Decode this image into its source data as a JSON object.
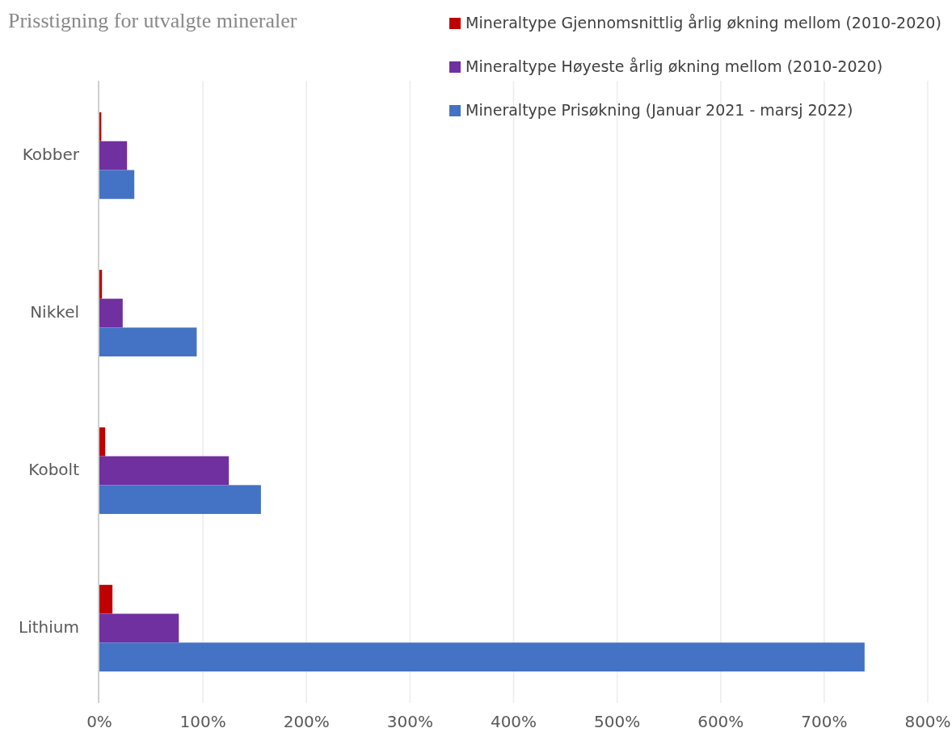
{
  "chart_data": {
    "type": "bar",
    "orientation": "horizontal",
    "title": "Prisstigning for utvalgte mineraler",
    "categories": [
      "Kobber",
      "Nikkel",
      "Kobolt",
      "Lithium"
    ],
    "series": [
      {
        "name": "Mineraltype Gjennomsnittlig årlig økning mellom (2010-2020)",
        "color": "#c00000",
        "values": [
          1.8,
          2.5,
          5.6,
          12.6
        ]
      },
      {
        "name": "Mineraltype Høyeste årlig økning mellom (2010-2020)",
        "color": "#7030a0",
        "values": [
          26.7,
          22.5,
          125,
          76.7
        ]
      },
      {
        "name": "Mineraltype Prisøkning (Januar 2021 - marsj 2022)",
        "color": "#4472c4",
        "values": [
          33.7,
          94,
          156,
          739
        ]
      }
    ],
    "xlim": [
      0,
      800
    ],
    "xticks": [
      {
        "value": 0,
        "label": "0%"
      },
      {
        "value": 100,
        "label": "100%"
      },
      {
        "value": 200,
        "label": "200%"
      },
      {
        "value": 300,
        "label": "300%"
      },
      {
        "value": 400,
        "label": "400%"
      },
      {
        "value": 500,
        "label": "500%"
      },
      {
        "value": 600,
        "label": "600%"
      },
      {
        "value": 700,
        "label": "700%"
      },
      {
        "value": 800,
        "label": "800%"
      }
    ],
    "grid": "x",
    "legend": "top right"
  }
}
